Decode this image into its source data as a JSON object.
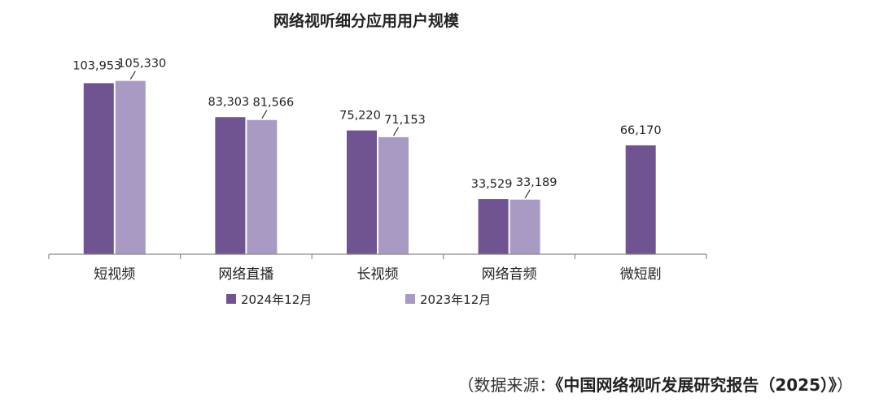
{
  "chart_data": {
    "type": "bar",
    "title": "网络视听细分应用用户规模",
    "categories": [
      "短视频",
      "网络直播",
      "长视频",
      "网络音频",
      "微短剧"
    ],
    "series": [
      {
        "name": "2024年12月",
        "color": "#6f5491",
        "values": [
          103953,
          83303,
          75220,
          33529,
          66170
        ],
        "labels": [
          "103,953",
          "83,303",
          "75,220",
          "33,529",
          "66,170"
        ]
      },
      {
        "name": "2023年12月",
        "color": "#a99ac3",
        "values": [
          105330,
          81566,
          71153,
          33189,
          null
        ],
        "labels": [
          "105,330",
          "81,566",
          "71,153",
          "33,189",
          ""
        ]
      }
    ],
    "ylim": [
      0,
      115000
    ],
    "grid": false,
    "legend": "bottom"
  },
  "source": {
    "prefix": "（数据来源：",
    "name": "《中国网络视听发展研究报告（2025）》",
    "suffix": "）"
  }
}
